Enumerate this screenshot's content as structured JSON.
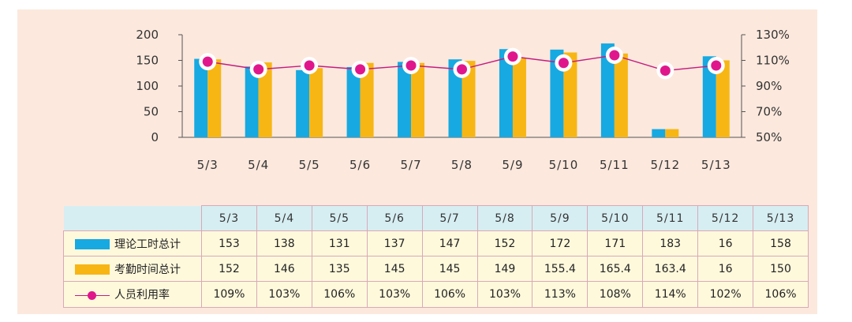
{
  "chart_data": {
    "type": "bar",
    "categories": [
      "5/3",
      "5/4",
      "5/5",
      "5/6",
      "5/7",
      "5/8",
      "5/9",
      "5/10",
      "5/11",
      "5/12",
      "5/13"
    ],
    "series": [
      {
        "name": "理论工时总计",
        "type": "bar",
        "axis": "left",
        "color": "#17a9e1",
        "values": [
          153,
          138,
          131,
          137,
          147,
          152,
          172,
          171,
          183,
          16,
          158
        ]
      },
      {
        "name": "考勤时间总计",
        "type": "bar",
        "axis": "left",
        "color": "#f7b614",
        "values": [
          152,
          146,
          135,
          145,
          145,
          149,
          155.4,
          165.4,
          163.4,
          16,
          150
        ]
      },
      {
        "name": "人员利用率",
        "type": "line",
        "axis": "right",
        "color": "#e0178c",
        "values": [
          109,
          103,
          106,
          103,
          106,
          103,
          113,
          108,
          114,
          102,
          106
        ]
      }
    ],
    "left_axis": {
      "ticks": [
        "0",
        "50",
        "100",
        "150",
        "200"
      ],
      "ylim": [
        0,
        200
      ]
    },
    "right_axis": {
      "ticks": [
        "50%",
        "70%",
        "90%",
        "110%",
        "130%"
      ],
      "ylim": [
        50,
        130
      ]
    },
    "table": {
      "rows": [
        {
          "label": "理论工时总计",
          "values": [
            "153",
            "138",
            "131",
            "137",
            "147",
            "152",
            "172",
            "171",
            "183",
            "16",
            "158"
          ]
        },
        {
          "label": "考勤时间总计",
          "values": [
            "152",
            "146",
            "135",
            "145",
            "145",
            "149",
            "155.4",
            "165.4",
            "163.4",
            "16",
            "150"
          ]
        },
        {
          "label": "人员利用率",
          "values": [
            "109%",
            "103%",
            "106%",
            "103%",
            "106%",
            "103%",
            "113%",
            "108%",
            "114%",
            "102%",
            "106%"
          ]
        }
      ]
    },
    "colors": {
      "background": "#fce8dd",
      "table_header": "#d6eef2",
      "table_cell": "#fff9dc",
      "table_border": "#d9a8b8"
    }
  }
}
